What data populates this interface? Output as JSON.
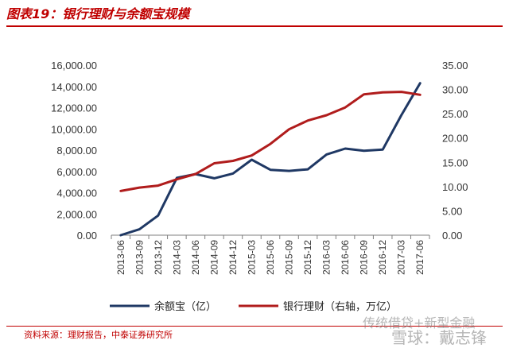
{
  "figure": {
    "label": "图表",
    "number": "19：",
    "title_text": "银行理财与余额宝规模"
  },
  "source": "资料来源：理财报告，中泰证券研究所",
  "watermark": {
    "line1": "传统借贷+新型金融",
    "line2": "雪球：戴志锋"
  },
  "colors": {
    "accent": "#c00000",
    "series_yuebao": "#1f3864",
    "series_wealth": "#b01c1c"
  },
  "chart_data": {
    "type": "line",
    "title": "银行理财与余额宝规模",
    "categories": [
      "2013-06",
      "2013-09",
      "2013-12",
      "2014-03",
      "2014-06",
      "2014-09",
      "2014-12",
      "2015-03",
      "2015-06",
      "2015-09",
      "2015-12",
      "2016-03",
      "2016-06",
      "2016-09",
      "2016-12",
      "2017-03",
      "2017-06"
    ],
    "y_left": {
      "ylim": [
        0,
        16000
      ],
      "ticks": [
        "0.00",
        "2,000.00",
        "4,000.00",
        "6,000.00",
        "8,000.00",
        "10,000.00",
        "12,000.00",
        "14,000.00",
        "16,000.00"
      ],
      "tick_values": [
        0,
        2000,
        4000,
        6000,
        8000,
        10000,
        12000,
        14000,
        16000
      ]
    },
    "y_right": {
      "ylim": [
        0,
        35
      ],
      "ticks": [
        "0.00",
        "5.00",
        "10.00",
        "15.00",
        "20.00",
        "25.00",
        "30.00",
        "35.00"
      ],
      "tick_values": [
        0,
        5,
        10,
        15,
        20,
        25,
        30,
        35
      ]
    },
    "grid": false,
    "legend_position": "bottom",
    "series": [
      {
        "name": "余额宝（亿）",
        "axis": "left",
        "color": "#1f3864",
        "values": [
          0,
          550,
          1850,
          5400,
          5750,
          5350,
          5800,
          7100,
          6150,
          6050,
          6200,
          7600,
          8150,
          7950,
          8050,
          11300,
          14300
        ]
      },
      {
        "name": "银行理财（右轴，万亿）",
        "axis": "right",
        "color": "#b01c1c",
        "values": [
          9.1,
          9.8,
          10.2,
          11.5,
          12.6,
          14.8,
          15.3,
          16.4,
          18.8,
          21.8,
          23.6,
          24.7,
          26.3,
          29.0,
          29.4,
          29.5,
          28.9
        ]
      }
    ]
  }
}
